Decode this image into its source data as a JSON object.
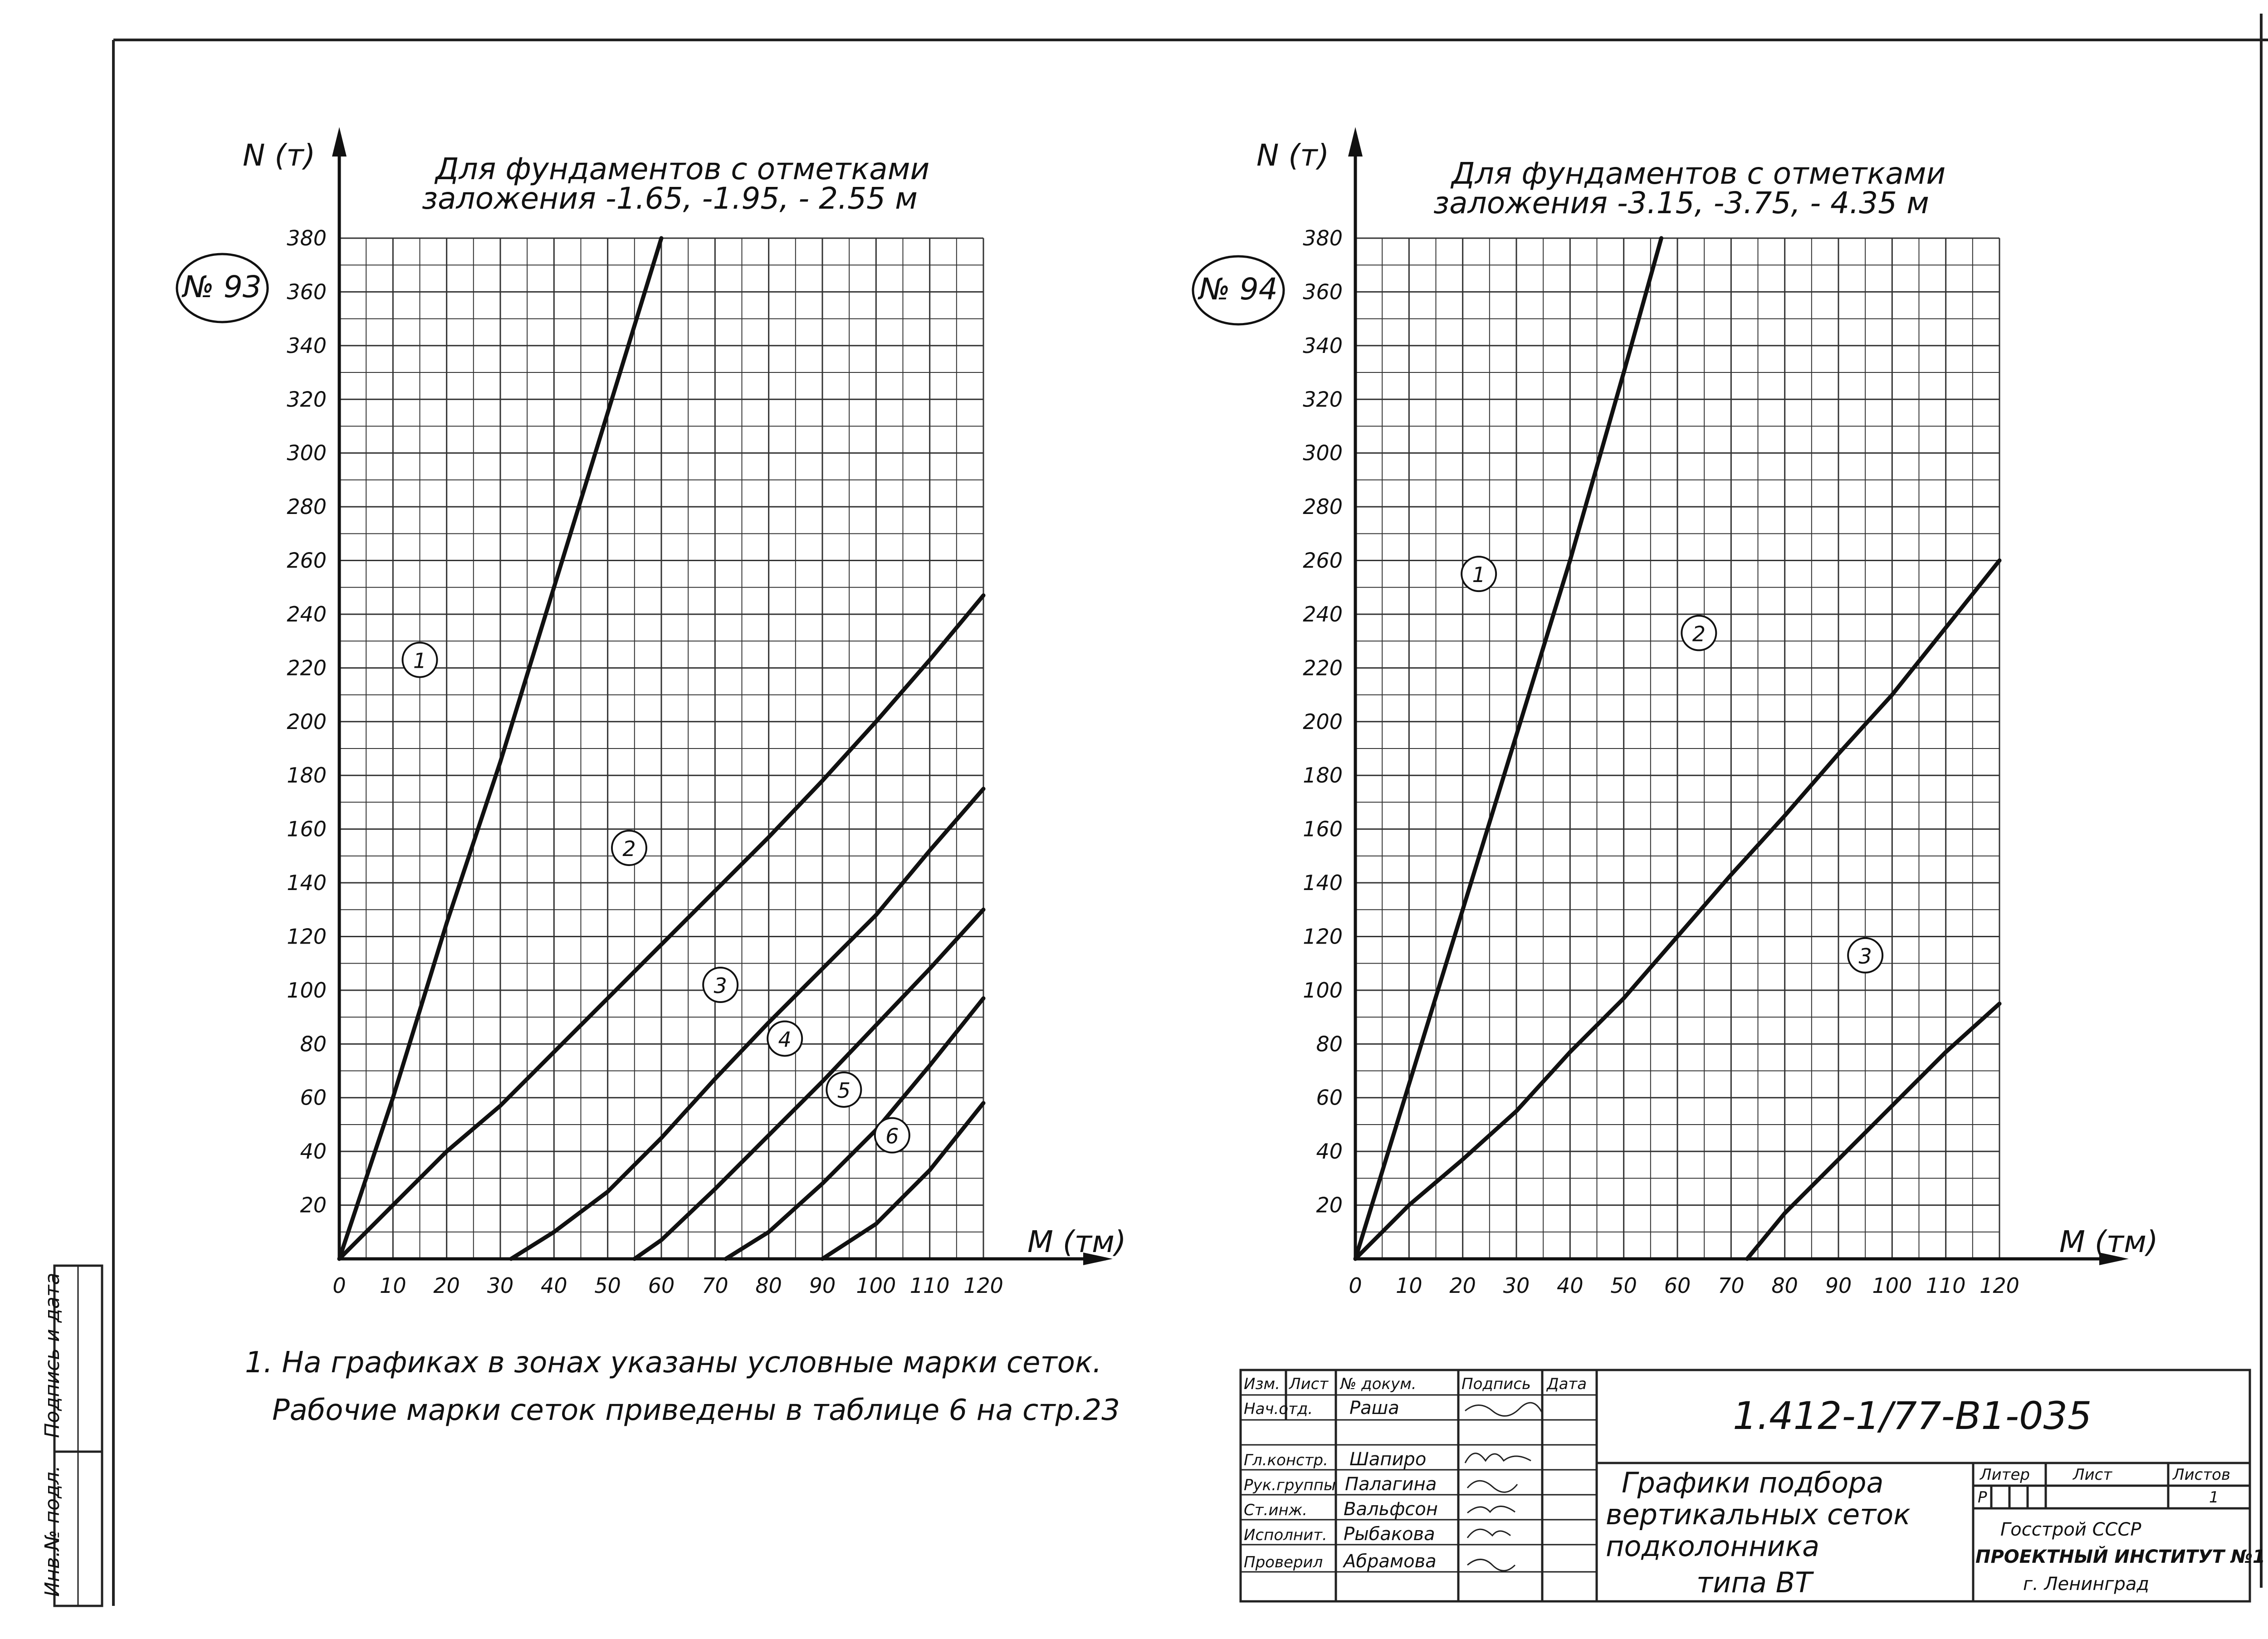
{
  "sheet_number": "1.412-1/77-B1-035",
  "chart_data": [
    {
      "type": "line",
      "badge": "№ 93",
      "title": "Для фундаментов с отметками",
      "subtitle": "заложения -1.65, -1.95, - 2.55 м",
      "xlabel": "M (тм)",
      "ylabel": "N (т)",
      "xlim": [
        0,
        120
      ],
      "ylim": [
        0,
        380
      ],
      "x_ticks": [
        "0",
        "10",
        "20",
        "30",
        "40",
        "50",
        "60",
        "70",
        "80",
        "90",
        "100",
        "110",
        "120"
      ],
      "y_ticks": [
        "20",
        "40",
        "60",
        "80",
        "100",
        "120",
        "140",
        "160",
        "180",
        "200",
        "220",
        "240",
        "260",
        "280",
        "300",
        "320",
        "340",
        "360",
        "380"
      ],
      "grid": true,
      "series": [
        {
          "name": "1",
          "points": [
            [
              0,
              0
            ],
            [
              10,
              60
            ],
            [
              20,
              125
            ],
            [
              30,
              185
            ],
            [
              40,
              250
            ],
            [
              50,
              315
            ],
            [
              60,
              380
            ]
          ]
        },
        {
          "name": "2",
          "points": [
            [
              0,
              0
            ],
            [
              10,
              20
            ],
            [
              20,
              40
            ],
            [
              30,
              57
            ],
            [
              40,
              77
            ],
            [
              50,
              97
            ],
            [
              60,
              117
            ],
            [
              70,
              137
            ],
            [
              80,
              157
            ],
            [
              90,
              178
            ],
            [
              100,
              200
            ],
            [
              110,
              223
            ],
            [
              120,
              247
            ]
          ]
        },
        {
          "name": "3",
          "points": [
            [
              32,
              0
            ],
            [
              40,
              10
            ],
            [
              50,
              25
            ],
            [
              60,
              45
            ],
            [
              70,
              67
            ],
            [
              80,
              88
            ],
            [
              90,
              108
            ],
            [
              100,
              128
            ],
            [
              110,
              152
            ],
            [
              120,
              175
            ]
          ]
        },
        {
          "name": "4",
          "points": [
            [
              55,
              0
            ],
            [
              60,
              7
            ],
            [
              70,
              26
            ],
            [
              80,
              46
            ],
            [
              90,
              66
            ],
            [
              100,
              87
            ],
            [
              110,
              108
            ],
            [
              120,
              130
            ]
          ]
        },
        {
          "name": "5",
          "points": [
            [
              72,
              0
            ],
            [
              80,
              10
            ],
            [
              90,
              28
            ],
            [
              100,
              48
            ],
            [
              110,
              72
            ],
            [
              120,
              97
            ]
          ]
        },
        {
          "name": "6",
          "points": [
            [
              90,
              0
            ],
            [
              100,
              13
            ],
            [
              110,
              33
            ],
            [
              120,
              58
            ]
          ]
        }
      ],
      "label_positions": [
        [
          15,
          223
        ],
        [
          54,
          153
        ],
        [
          71,
          102
        ],
        [
          83,
          82
        ],
        [
          94,
          63
        ],
        [
          103,
          46
        ]
      ]
    },
    {
      "type": "line",
      "badge": "№ 94",
      "title": "Для фундаментов с отметками",
      "subtitle": "заложения -3.15, -3.75, - 4.35 м",
      "xlabel": "M (тм)",
      "ylabel": "N (т)",
      "xlim": [
        0,
        120
      ],
      "ylim": [
        0,
        380
      ],
      "x_ticks": [
        "0",
        "10",
        "20",
        "30",
        "40",
        "50",
        "60",
        "70",
        "80",
        "90",
        "100",
        "110",
        "120"
      ],
      "y_ticks": [
        "20",
        "40",
        "60",
        "80",
        "100",
        "120",
        "140",
        "160",
        "180",
        "200",
        "220",
        "240",
        "260",
        "280",
        "300",
        "320",
        "340",
        "360",
        "380"
      ],
      "grid": true,
      "series": [
        {
          "name": "1",
          "points": [
            [
              0,
              0
            ],
            [
              10,
              65
            ],
            [
              20,
              130
            ],
            [
              30,
              195
            ],
            [
              40,
              260
            ],
            [
              50,
              330
            ],
            [
              57,
              380
            ]
          ]
        },
        {
          "name": "2",
          "points": [
            [
              0,
              0
            ],
            [
              10,
              20
            ],
            [
              20,
              37
            ],
            [
              30,
              55
            ],
            [
              40,
              77
            ],
            [
              50,
              97
            ],
            [
              60,
              120
            ],
            [
              70,
              143
            ],
            [
              80,
              165
            ],
            [
              90,
              188
            ],
            [
              100,
              210
            ],
            [
              110,
              235
            ],
            [
              120,
              260
            ]
          ]
        },
        {
          "name": "3",
          "points": [
            [
              73,
              0
            ],
            [
              80,
              17
            ],
            [
              90,
              37
            ],
            [
              100,
              57
            ],
            [
              110,
              77
            ],
            [
              120,
              95
            ]
          ]
        }
      ],
      "label_positions": [
        [
          23,
          255
        ],
        [
          64,
          233
        ],
        [
          95,
          113
        ]
      ]
    }
  ],
  "notes": {
    "line1": "1. На графиках в зонах указаны условные марки сеток.",
    "line2": "Рабочие марки сеток приведены в таблице 6    на стр.23"
  },
  "title_block": {
    "header_cols": [
      "Изм.",
      "Лист",
      "№ докум.",
      "Подпись",
      "Дата"
    ],
    "rows": [
      {
        "role": "Нач.отд.",
        "name": "Раша"
      },
      {
        "role": "Гл.констр.",
        "name": "Шапиро"
      },
      {
        "role": "Рук.группы",
        "name": "Палагина"
      },
      {
        "role": "Ст.инж.",
        "name": "Вальфсон"
      },
      {
        "role": "Исполнит.",
        "name": "Рыбакова"
      },
      {
        "role": "Проверил",
        "name": "Абрамова"
      }
    ],
    "title_lines": [
      "Графики подбора",
      "вертикальных сеток",
      "подколонника",
      "типа ВТ"
    ],
    "stage_headers": [
      "Литер",
      "Лист",
      "Листов"
    ],
    "stage_value": "Р",
    "sheet_value": "1",
    "org_line1": "Госстрой СССР",
    "org_line2": "ПРОЕКТНЫЙ ИНСТИТУТ №1",
    "org_line3": "г. Ленинград"
  },
  "side_stamp": {
    "label1": "Подпись и дата",
    "label2": "Инв.№ подл."
  }
}
